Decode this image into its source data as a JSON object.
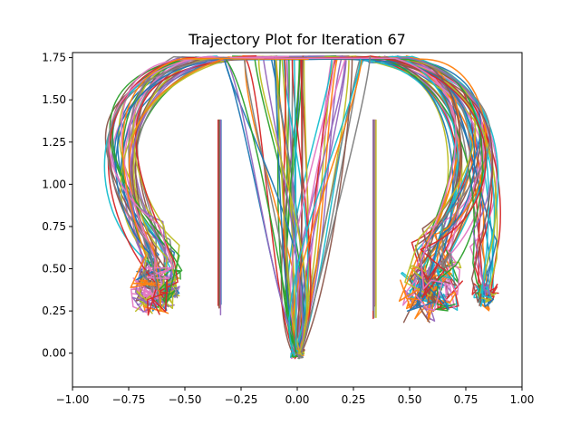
{
  "chart_data": {
    "type": "line",
    "title": "Trajectory Plot for Iteration 67",
    "xlabel": "",
    "ylabel": "",
    "xlim": [
      -1.0,
      1.0
    ],
    "ylim": [
      -0.2,
      1.78
    ],
    "x_ticks": [
      -1.0,
      -0.75,
      -0.5,
      -0.25,
      0.0,
      0.25,
      0.5,
      0.75,
      1.0
    ],
    "x_tick_labels": [
      "−1.00",
      "−0.75",
      "−0.50",
      "−0.25",
      "0.00",
      "0.25",
      "0.50",
      "0.75",
      "1.00"
    ],
    "y_ticks": [
      0.0,
      0.25,
      0.5,
      0.75,
      1.0,
      1.25,
      1.5,
      1.75
    ],
    "y_tick_labels": [
      "0.00",
      "0.25",
      "0.50",
      "0.75",
      "1.00",
      "1.25",
      "1.50",
      "1.75"
    ],
    "grid": false,
    "legend": "none",
    "palette": [
      "#1f77b4",
      "#ff7f0e",
      "#2ca02c",
      "#d62728",
      "#9467bd",
      "#8c564b",
      "#e377c2",
      "#7f7f7f",
      "#bcbd22",
      "#17becf"
    ],
    "clusters": [
      {
        "name": "far-left",
        "center": [
          -0.62,
          0.38
        ]
      },
      {
        "name": "center-bottom",
        "center": [
          0.0,
          0.0
        ]
      },
      {
        "name": "right",
        "center": [
          0.6,
          0.38
        ]
      },
      {
        "name": "far-right",
        "center": [
          0.84,
          0.34
        ]
      }
    ],
    "walls": [
      {
        "x": -0.345,
        "y_range": [
          0.2,
          1.38
        ]
      },
      {
        "x": 0.345,
        "y_range": [
          0.2,
          1.38
        ]
      }
    ],
    "top_plateau_y": 1.75,
    "num_trajectories": 150
  }
}
